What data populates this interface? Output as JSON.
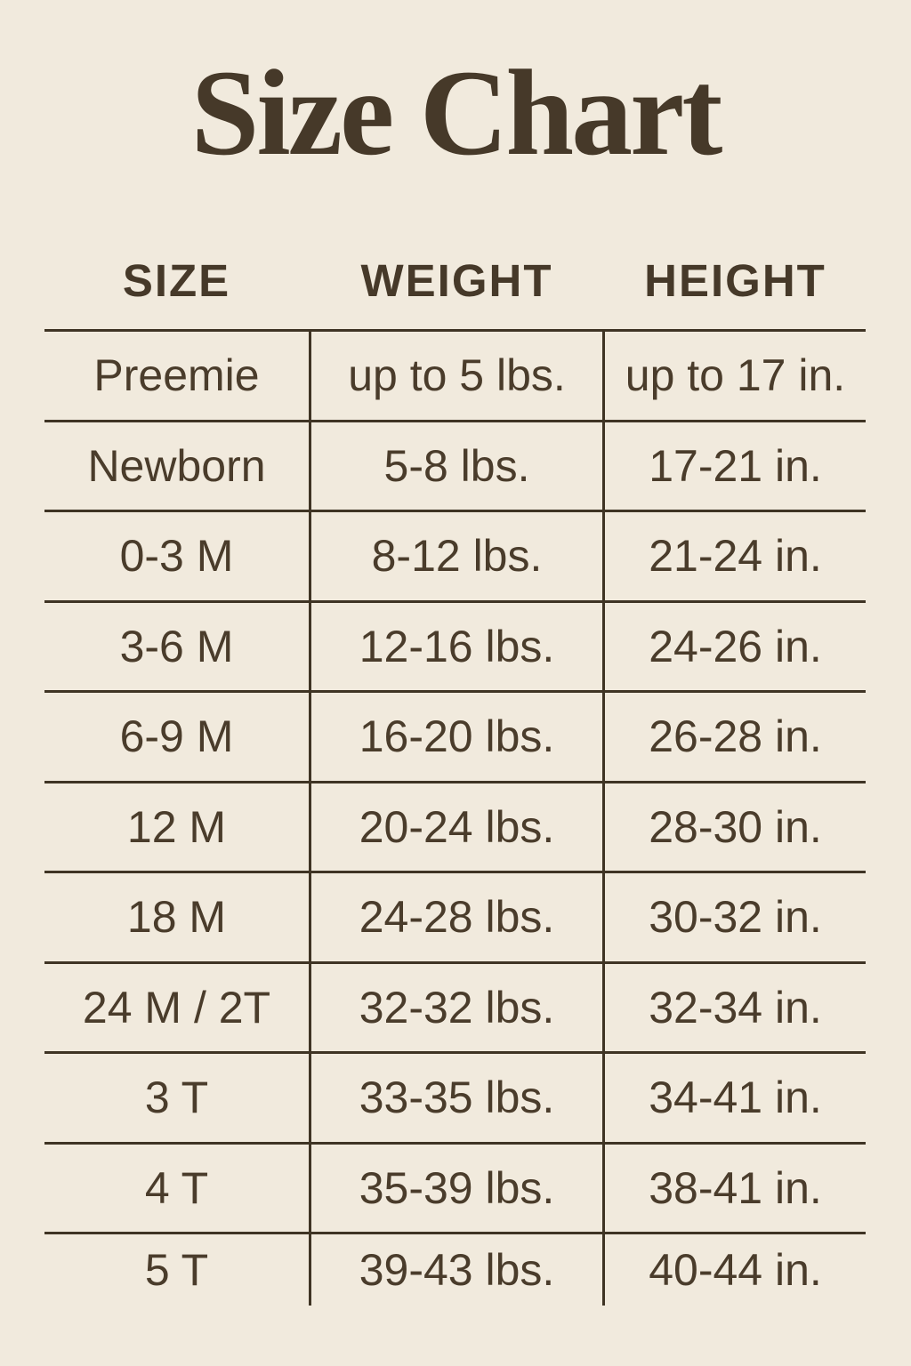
{
  "title": "Size Chart",
  "colors": {
    "background": "#f1eadd",
    "text": "#4a3c2b",
    "title": "#463929",
    "line": "#3f3424"
  },
  "table": {
    "headers": [
      "SIZE",
      "WEIGHT",
      "HEIGHT"
    ],
    "rows": [
      {
        "size": "Preemie",
        "weight": "up to 5 lbs.",
        "height": "up to 17 in."
      },
      {
        "size": "Newborn",
        "weight": "5-8 lbs.",
        "height": "17-21 in."
      },
      {
        "size": "0-3 M",
        "weight": "8-12 lbs.",
        "height": "21-24 in."
      },
      {
        "size": "3-6 M",
        "weight": "12-16 lbs.",
        "height": "24-26 in."
      },
      {
        "size": "6-9 M",
        "weight": "16-20 lbs.",
        "height": "26-28 in."
      },
      {
        "size": "12 M",
        "weight": "20-24 lbs.",
        "height": "28-30 in."
      },
      {
        "size": "18 M",
        "weight": "24-28 lbs.",
        "height": "30-32 in."
      },
      {
        "size": "24 M / 2T",
        "weight": "32-32 lbs.",
        "height": "32-34 in."
      },
      {
        "size": "3 T",
        "weight": "33-35 lbs.",
        "height": "34-41 in."
      },
      {
        "size": "4 T",
        "weight": "35-39 lbs.",
        "height": "38-41 in."
      },
      {
        "size": "5 T",
        "weight": "39-43 lbs.",
        "height": "40-44 in."
      }
    ]
  }
}
